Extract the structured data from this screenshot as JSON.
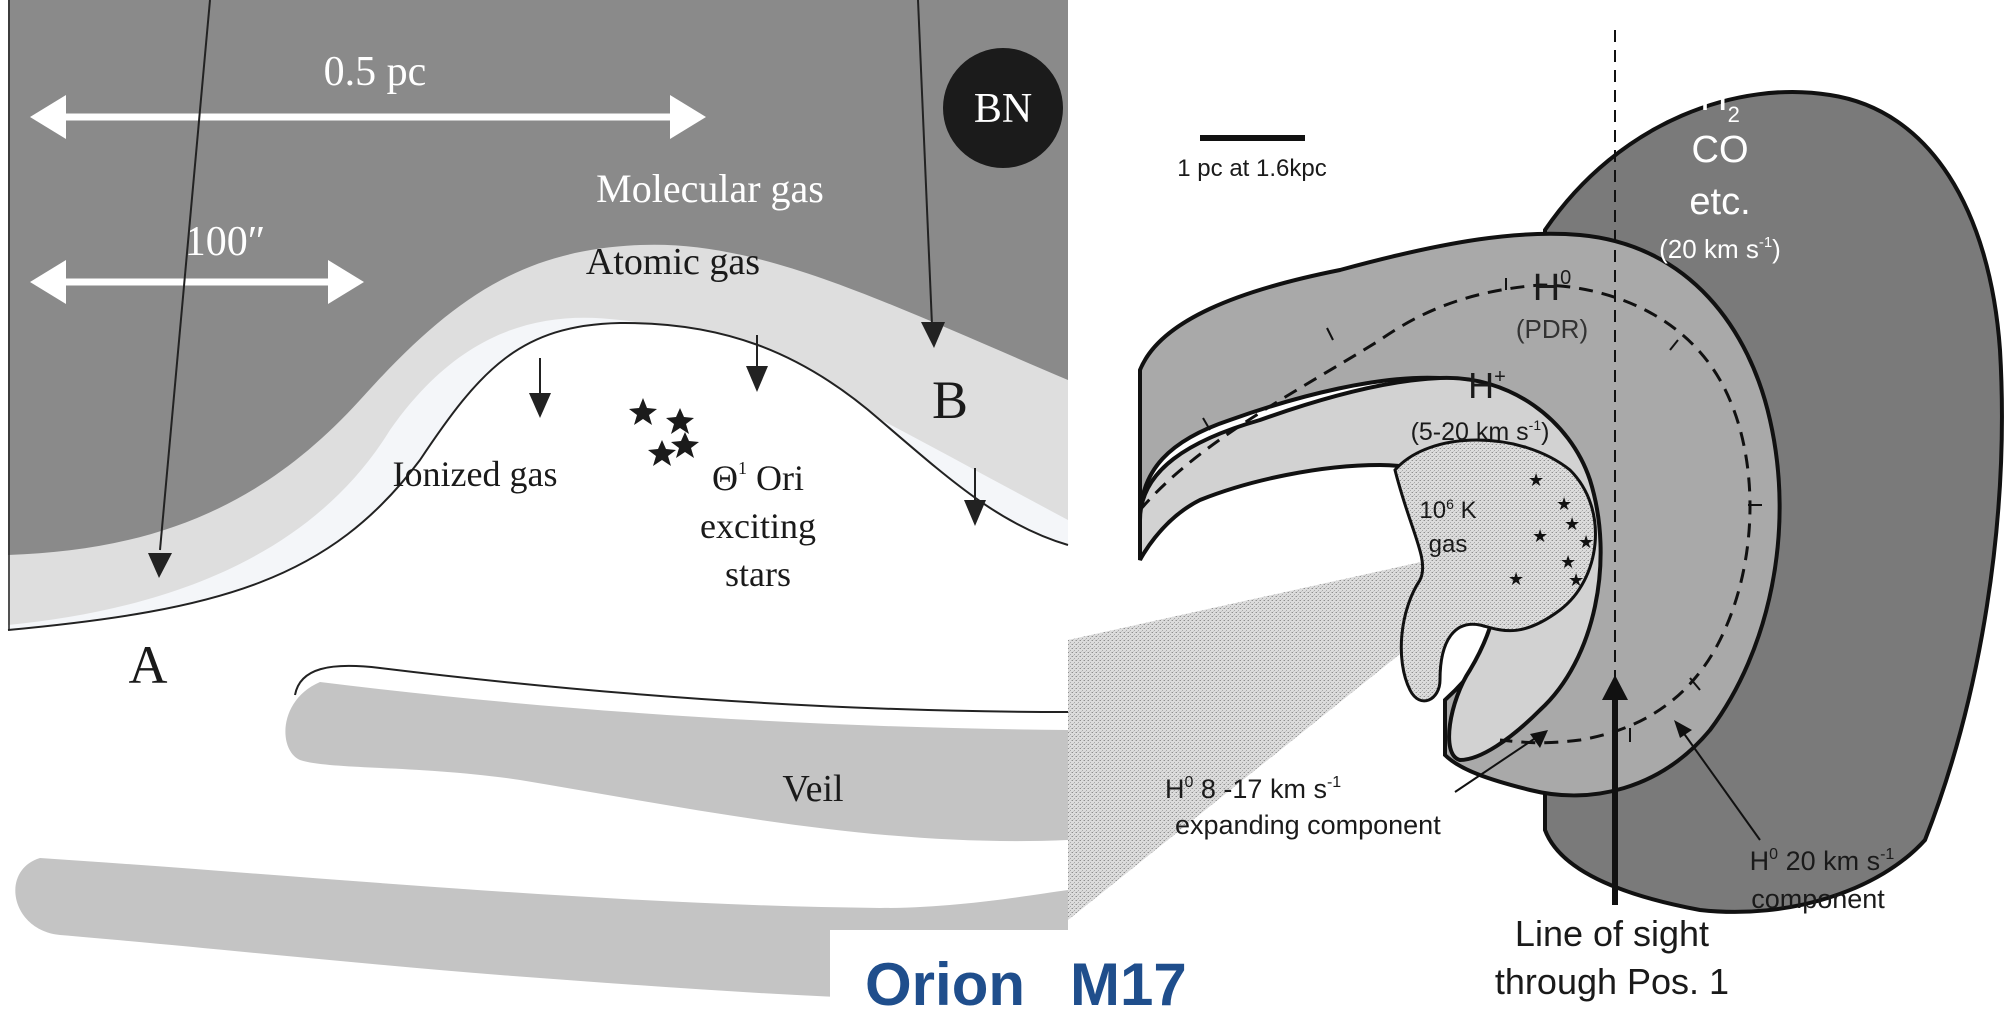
{
  "orion": {
    "scale_long": "0.5 pc",
    "scale_short": "100″",
    "bn": "BN",
    "molecular_gas": "Molecular gas",
    "atomic_gas": "Atomic gas",
    "ionized_gas": "Ionized gas",
    "theta": "Θ",
    "theta_sup": "1",
    "stars_line1": "Ori",
    "stars_line2": "exciting",
    "stars_line3": "stars",
    "point_a": "A",
    "point_b": "B",
    "veil": "Veil"
  },
  "m17": {
    "scale_bar": "1 pc at 1.6kpc",
    "h2_base": "H",
    "h2_sub": "2",
    "co": "CO",
    "etc": "etc.",
    "velocity_molecular": "(20 km s",
    "velocity_molecular_sup": "-1",
    "velocity_molecular_end": ")",
    "h0_base": "H",
    "h0_sup": "0",
    "pdr": "(PDR)",
    "hplus_base": "H",
    "hplus_sup": "+",
    "velocity_ionized": "(5-20 km s",
    "velocity_ionized_sup": "-1",
    "velocity_ionized_end": ")",
    "hot_gas_base": "10",
    "hot_gas_sup": "6",
    "hot_gas_unit": " K",
    "hot_gas_word": "gas",
    "expanding_h": "H",
    "expanding_sup": "0",
    "expanding_text": " 8 -17 km s",
    "expanding_sup2": "-1",
    "expanding_line2": "expanding component",
    "component_h": "H",
    "component_sup": "0",
    "component_text": " 20 km s",
    "component_sup2": "-1",
    "component_line2": "component",
    "line_of_sight_1": "Line of sight",
    "line_of_sight_2": "through Pos. 1"
  },
  "titles": {
    "orion": "Orion",
    "m17": "M17"
  },
  "colors": {
    "molecular": "#8a8a8a",
    "atomic": "#dedede",
    "ionized_rim": "#f4f6f9",
    "veil": "#c4c4c4",
    "m17_outer": "#7a7a7a",
    "m17_mid": "#a9a9a9",
    "m17_inner": "#d2d2d2",
    "title": "#1f4e8c"
  }
}
